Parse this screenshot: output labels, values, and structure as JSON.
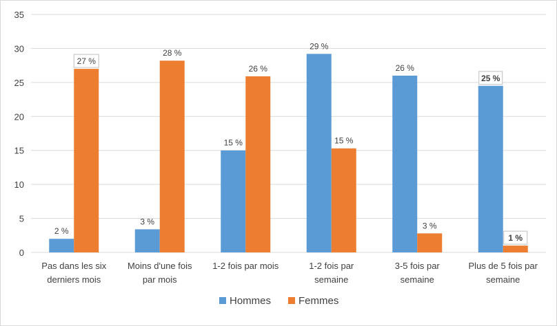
{
  "chart_data": {
    "type": "bar",
    "categories": [
      [
        "Pas dans les six",
        "derniers mois"
      ],
      [
        "Moins d'une fois",
        "par mois"
      ],
      [
        "1-2 fois par mois"
      ],
      [
        "1-2 fois par",
        "semaine"
      ],
      [
        "3-5 fois par",
        "semaine"
      ],
      [
        "Plus de 5 fois par",
        "semaine"
      ]
    ],
    "series": [
      {
        "name": "Hommes",
        "color": "#5b9bd5",
        "values": [
          2,
          3.4,
          15,
          29.2,
          26,
          24.5
        ],
        "labels": [
          "2 %",
          "3 %",
          "15 %",
          "29 %",
          "26 %",
          "25 %"
        ],
        "boxed": [
          false,
          false,
          false,
          false,
          false,
          true
        ],
        "bold": [
          false,
          false,
          false,
          false,
          false,
          true
        ]
      },
      {
        "name": "Femmes",
        "color": "#ed7d31",
        "values": [
          27,
          28.2,
          25.9,
          15.3,
          2.8,
          1
        ],
        "labels": [
          "27 %",
          "28 %",
          "26 %",
          "15 %",
          "3 %",
          "1 %"
        ],
        "boxed": [
          true,
          false,
          false,
          false,
          false,
          true
        ],
        "bold": [
          false,
          false,
          false,
          false,
          false,
          true
        ]
      }
    ],
    "ylim": [
      0,
      35
    ],
    "yticks": [
      0,
      5,
      10,
      15,
      20,
      25,
      30,
      35
    ],
    "grid": true,
    "legend": "bottom",
    "gridColor": "#d9d9d9"
  }
}
